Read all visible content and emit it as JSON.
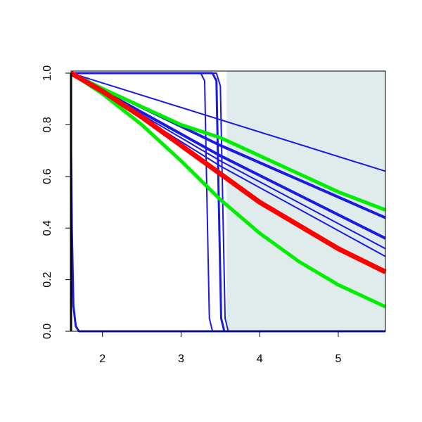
{
  "chart_data": {
    "type": "line",
    "xlim": [
      1.6,
      5.6
    ],
    "ylim": [
      0,
      1
    ],
    "xticks": [
      2,
      3,
      4,
      5
    ],
    "yticks": [
      {
        "value": 0,
        "label": "0.0"
      },
      0.2,
      0.4,
      0.6,
      0.8,
      {
        "value": 1,
        "label": "1.0"
      }
    ],
    "shaded_region": {
      "xlim": [
        3.58,
        5.6
      ],
      "color": "#e0ecec"
    },
    "series": [
      {
        "color": "#1a1ae6",
        "line_width": 2,
        "x": [
          1.6,
          5.6
        ],
        "values": [
          1,
          0.62
        ]
      },
      {
        "color": "#1a1ae6",
        "line_width": 2,
        "x": [
          1.6,
          3.5,
          5.6
        ],
        "values": [
          1,
          0.64,
          0.29
        ]
      },
      {
        "color": "#1a1ae6",
        "line_width": 2,
        "x": [
          1.6,
          3.5,
          5.6
        ],
        "values": [
          1,
          0.66,
          0.32
        ]
      },
      {
        "color": "#1a1ae6",
        "line_width": 4,
        "x": [
          1.6,
          3.5,
          5.6
        ],
        "values": [
          1,
          0.68,
          0.36
        ]
      },
      {
        "color": "#1a1ae6",
        "line_width": 4,
        "x": [
          1.6,
          3.5,
          5.6
        ],
        "values": [
          1,
          0.72,
          0.44
        ]
      },
      {
        "color": "#1a1ae6",
        "line_width": 3,
        "x": [
          1.6,
          1.61,
          1.63,
          1.66,
          1.7,
          5.6
        ],
        "values": [
          0.7,
          0.4,
          0.1,
          0.02,
          0,
          0
        ]
      },
      {
        "color": "#1a1ae6",
        "line_width": 2,
        "x": [
          1.6,
          3.25,
          3.3,
          3.33,
          3.36,
          3.4,
          5.6
        ],
        "values": [
          1,
          1,
          0.97,
          0.5,
          0.05,
          0,
          0
        ]
      },
      {
        "color": "#1a1ae6",
        "line_width": 3,
        "x": [
          1.6,
          3.4,
          3.45,
          3.48,
          3.51,
          3.55,
          5.6
        ],
        "values": [
          1,
          1,
          0.97,
          0.5,
          0.05,
          0,
          0
        ]
      },
      {
        "color": "#1a1ae6",
        "line_width": 2,
        "x": [
          1.6,
          3.45,
          3.5,
          3.53,
          3.56,
          3.6,
          5.6
        ],
        "values": [
          1,
          1,
          0.95,
          0.5,
          0.05,
          0,
          0
        ]
      },
      {
        "color": "#00ee00",
        "line_width": 5,
        "x": [
          1.6,
          2,
          2.5,
          3,
          3.5,
          4,
          4.5,
          5,
          5.6
        ],
        "values": [
          1,
          0.94,
          0.87,
          0.8,
          0.75,
          0.68,
          0.61,
          0.54,
          0.47
        ]
      },
      {
        "color": "#00ee00",
        "line_width": 5,
        "x": [
          1.6,
          2,
          2.5,
          3,
          3.5,
          4,
          4.5,
          5,
          5.6
        ],
        "values": [
          1,
          0.92,
          0.8,
          0.66,
          0.51,
          0.38,
          0.27,
          0.18,
          0.095
        ]
      },
      {
        "color": "#ff0000",
        "line_width": 7,
        "x": [
          1.6,
          2,
          2.5,
          3,
          3.5,
          4,
          4.5,
          5,
          5.6
        ],
        "values": [
          1,
          0.93,
          0.83,
          0.72,
          0.61,
          0.5,
          0.41,
          0.32,
          0.23
        ]
      }
    ]
  }
}
